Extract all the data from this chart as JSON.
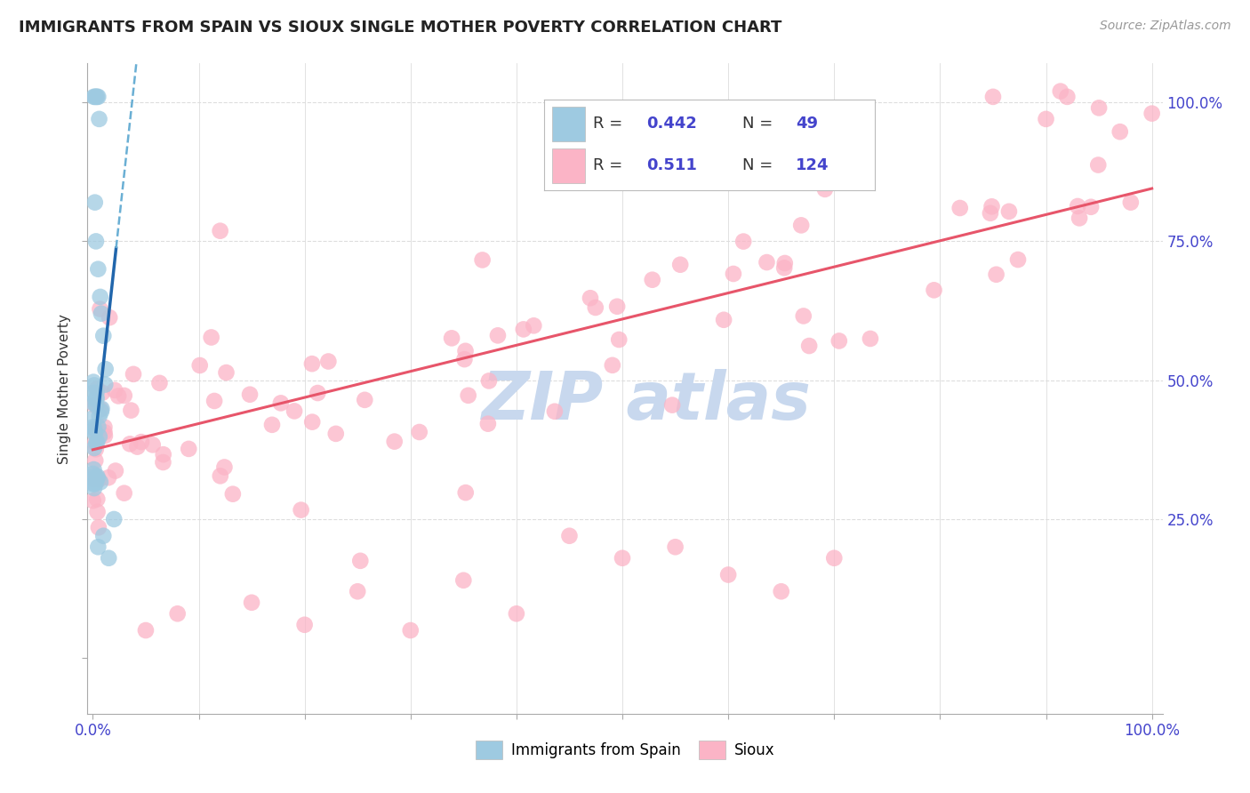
{
  "title": "IMMIGRANTS FROM SPAIN VS SIOUX SINGLE MOTHER POVERTY CORRELATION CHART",
  "source": "Source: ZipAtlas.com",
  "ylabel": "Single Mother Poverty",
  "blue_color": "#9ecae1",
  "pink_color": "#fbb4c6",
  "blue_line_color": "#2166ac",
  "pink_line_color": "#e7556a",
  "blue_line_dashed_color": "#6aafd4",
  "watermark_color": "#c8d8ee",
  "tick_color": "#4444cc",
  "grid_color": "#dddddd",
  "legend_border_color": "#bbbbbb",
  "blue_trend_x0": 0.0,
  "blue_trend_y0": 0.355,
  "blue_trend_x1": 0.025,
  "blue_trend_y1": 0.79,
  "pink_trend_x0": 0.0,
  "pink_trend_y0": 0.375,
  "pink_trend_x1": 1.0,
  "pink_trend_y1": 0.845,
  "xlim_min": -0.005,
  "xlim_max": 1.01,
  "ylim_min": -0.1,
  "ylim_max": 1.07,
  "legend_r_blue": "0.442",
  "legend_n_blue": "49",
  "legend_r_pink": "0.511",
  "legend_n_pink": "124"
}
